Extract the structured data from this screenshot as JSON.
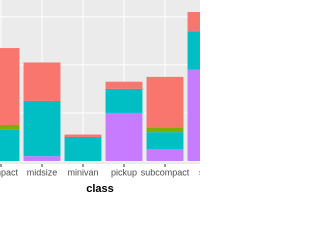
{
  "chart_data": {
    "type": "stacked_bar",
    "x_label": "class",
    "categories": [
      "compact",
      "midsize",
      "minivan",
      "pickup",
      "subcompact",
      "suv"
    ],
    "series": [
      {
        "color": "#F8766D",
        "values": [
          32,
          16,
          1,
          3,
          21,
          8
        ]
      },
      {
        "color": "#7CAE00",
        "values": [
          2,
          0,
          0,
          0,
          2,
          0
        ]
      },
      {
        "color": "#00BFC4",
        "values": [
          13,
          23,
          10,
          10,
          7,
          16
        ]
      },
      {
        "color": "#C77CFF",
        "values": [
          0,
          2,
          0,
          20,
          5,
          38
        ]
      }
    ],
    "ylim": [
      0,
      67
    ],
    "yticks": [
      0,
      20,
      40,
      60
    ],
    "grid": true
  }
}
